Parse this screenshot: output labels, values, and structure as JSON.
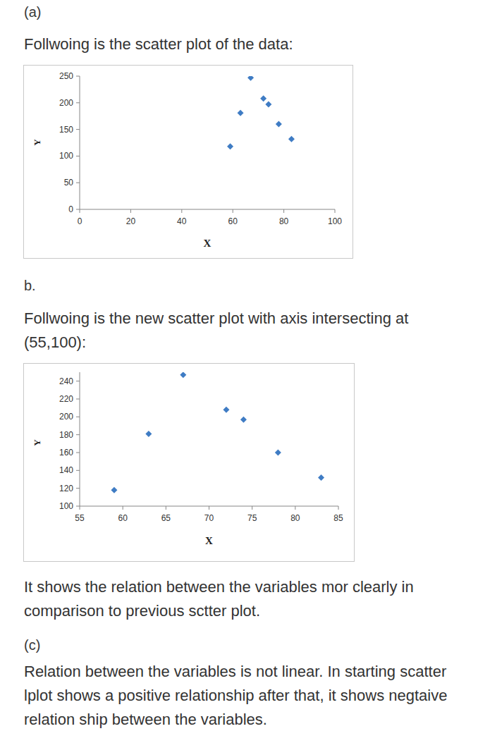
{
  "document": {
    "part_a": {
      "label": "(a)",
      "text": "Follwoing is the scatter plot of the data:"
    },
    "part_b": {
      "label": "b.",
      "text": "Follwoing is the new scatter plot with axis intersecting at (55,100):",
      "comment": "It shows the relation between the variables mor clearly in comparison to previous sctter plot."
    },
    "part_c": {
      "label": "(c)",
      "text": "Relation between the variables is not linear. In starting scatter lplot shows a positive relationship after that, it shows negtaive relation ship between the variables."
    }
  },
  "chart_data": [
    {
      "type": "scatter",
      "x_label": "X",
      "y_label": "Y",
      "x": [
        59,
        63,
        67,
        72,
        74,
        78,
        83
      ],
      "values": [
        118,
        181,
        247,
        208,
        197,
        160,
        132
      ],
      "color": "#3f7cc4",
      "marker": "diamond",
      "grid": false,
      "xlim": [
        0,
        100
      ],
      "xticks": [
        0,
        20,
        40,
        60,
        80,
        100
      ],
      "ylim": [
        0,
        250
      ],
      "yticks": [
        0,
        50,
        100,
        150,
        200,
        250
      ]
    },
    {
      "type": "scatter",
      "x_label": "X",
      "y_label": "Y",
      "x": [
        59,
        63,
        67,
        72,
        74,
        78,
        83
      ],
      "values": [
        118,
        181,
        247,
        208,
        197,
        160,
        132
      ],
      "color": "#3f7cc4",
      "marker": "diamond",
      "grid": false,
      "xlim": [
        55,
        85
      ],
      "xticks": [
        55,
        60,
        65,
        70,
        75,
        80,
        85
      ],
      "ylim": [
        100,
        250
      ],
      "yticks": [
        100,
        120,
        140,
        160,
        180,
        200,
        220,
        240
      ]
    }
  ]
}
